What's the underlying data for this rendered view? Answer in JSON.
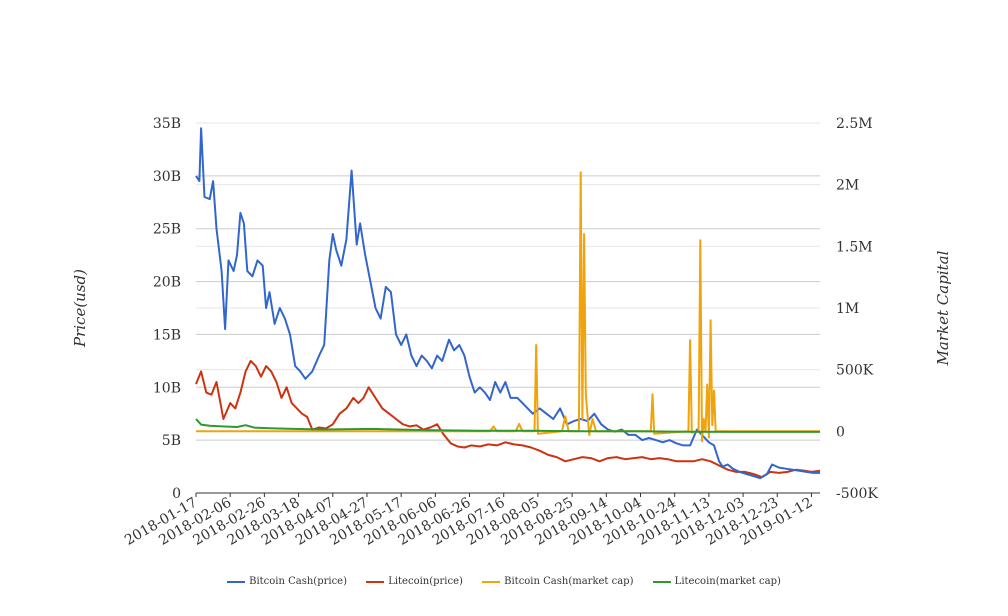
{
  "chart_data": {
    "type": "line",
    "y_left_label": "Price(usd)",
    "y_right_label": "Market Capital",
    "y_left_ticks": [
      "0",
      "5B",
      "10B",
      "15B",
      "20B",
      "25B",
      "30B",
      "35B"
    ],
    "y_left_range": [
      0,
      35000000000
    ],
    "y_right_ticks": [
      "-500K",
      "0",
      "500K",
      "1M",
      "1.5M",
      "2M",
      "2.5M"
    ],
    "y_right_range": [
      -500000,
      2500000
    ],
    "x_ticks": [
      "2018-01-17",
      "2018-02-06",
      "2018-02-26",
      "2018-03-18",
      "2018-04-07",
      "2018-04-27",
      "2018-05-17",
      "2018-06-06",
      "2018-06-26",
      "2018-07-16",
      "2018-08-05",
      "2018-08-25",
      "2018-09-14",
      "2018-10-04",
      "2018-10-24",
      "2018-11-13",
      "2018-12-03",
      "2018-12-23",
      "2019-01-12"
    ],
    "x_range": [
      "2018-01-17",
      "2019-01-17"
    ],
    "grid": true,
    "legend_position": "bottom",
    "series": [
      {
        "name": "Bitcoin Cash(price)",
        "color": "#3366cc",
        "axis": "left",
        "points": [
          [
            "2018-01-17",
            30.0
          ],
          [
            "2018-01-19",
            29.5
          ],
          [
            "2018-01-20",
            34.5
          ],
          [
            "2018-01-22",
            28.0
          ],
          [
            "2018-01-25",
            27.8
          ],
          [
            "2018-01-27",
            29.5
          ],
          [
            "2018-01-29",
            25.0
          ],
          [
            "2018-02-01",
            21.0
          ],
          [
            "2018-02-03",
            15.5
          ],
          [
            "2018-02-05",
            22.0
          ],
          [
            "2018-02-08",
            21.0
          ],
          [
            "2018-02-10",
            22.5
          ],
          [
            "2018-02-12",
            26.5
          ],
          [
            "2018-02-14",
            25.5
          ],
          [
            "2018-02-16",
            21.0
          ],
          [
            "2018-02-19",
            20.5
          ],
          [
            "2018-02-22",
            22.0
          ],
          [
            "2018-02-25",
            21.5
          ],
          [
            "2018-02-27",
            17.5
          ],
          [
            "2018-03-01",
            19.0
          ],
          [
            "2018-03-04",
            16.0
          ],
          [
            "2018-03-07",
            17.5
          ],
          [
            "2018-03-10",
            16.5
          ],
          [
            "2018-03-13",
            15.0
          ],
          [
            "2018-03-16",
            12.0
          ],
          [
            "2018-03-19",
            11.5
          ],
          [
            "2018-03-22",
            10.8
          ],
          [
            "2018-03-26",
            11.5
          ],
          [
            "2018-03-30",
            13.0
          ],
          [
            "2018-04-02",
            14.0
          ],
          [
            "2018-04-05",
            22.0
          ],
          [
            "2018-04-07",
            24.5
          ],
          [
            "2018-04-09",
            23.0
          ],
          [
            "2018-04-12",
            21.5
          ],
          [
            "2018-04-15",
            24.0
          ],
          [
            "2018-04-18",
            30.5
          ],
          [
            "2018-04-21",
            23.5
          ],
          [
            "2018-04-23",
            25.5
          ],
          [
            "2018-04-26",
            22.5
          ],
          [
            "2018-04-29",
            20.0
          ],
          [
            "2018-05-02",
            17.5
          ],
          [
            "2018-05-05",
            16.5
          ],
          [
            "2018-05-08",
            19.5
          ],
          [
            "2018-05-11",
            19.0
          ],
          [
            "2018-05-14",
            15.0
          ],
          [
            "2018-05-17",
            14.0
          ],
          [
            "2018-05-20",
            15.0
          ],
          [
            "2018-05-23",
            13.0
          ],
          [
            "2018-05-26",
            12.0
          ],
          [
            "2018-05-29",
            13.0
          ],
          [
            "2018-06-01",
            12.5
          ],
          [
            "2018-06-04",
            11.8
          ],
          [
            "2018-06-07",
            13.0
          ],
          [
            "2018-06-10",
            12.5
          ],
          [
            "2018-06-14",
            14.5
          ],
          [
            "2018-06-17",
            13.5
          ],
          [
            "2018-06-20",
            14.0
          ],
          [
            "2018-06-23",
            13.0
          ],
          [
            "2018-06-26",
            11.0
          ],
          [
            "2018-06-29",
            9.5
          ],
          [
            "2018-07-02",
            10.0
          ],
          [
            "2018-07-05",
            9.5
          ],
          [
            "2018-07-08",
            8.8
          ],
          [
            "2018-07-11",
            10.5
          ],
          [
            "2018-07-14",
            9.5
          ],
          [
            "2018-07-17",
            10.5
          ],
          [
            "2018-07-20",
            9.0
          ],
          [
            "2018-07-24",
            9.0
          ],
          [
            "2018-07-27",
            8.5
          ],
          [
            "2018-07-30",
            8.0
          ],
          [
            "2018-08-02",
            7.5
          ],
          [
            "2018-08-06",
            8.0
          ],
          [
            "2018-08-10",
            7.5
          ],
          [
            "2018-08-14",
            7.0
          ],
          [
            "2018-08-18",
            8.0
          ],
          [
            "2018-08-22",
            6.5
          ],
          [
            "2018-08-26",
            6.8
          ],
          [
            "2018-08-30",
            7.0
          ],
          [
            "2018-09-03",
            6.8
          ],
          [
            "2018-09-07",
            7.5
          ],
          [
            "2018-09-11",
            6.5
          ],
          [
            "2018-09-15",
            6.0
          ],
          [
            "2018-09-19",
            5.8
          ],
          [
            "2018-09-23",
            6.0
          ],
          [
            "2018-09-27",
            5.5
          ],
          [
            "2018-10-01",
            5.5
          ],
          [
            "2018-10-05",
            5.0
          ],
          [
            "2018-10-09",
            5.2
          ],
          [
            "2018-10-13",
            5.0
          ],
          [
            "2018-10-17",
            4.8
          ],
          [
            "2018-10-21",
            5.0
          ],
          [
            "2018-10-25",
            4.7
          ],
          [
            "2018-10-29",
            4.5
          ],
          [
            "2018-11-02",
            4.5
          ],
          [
            "2018-11-06",
            6.0
          ],
          [
            "2018-11-09",
            5.5
          ],
          [
            "2018-11-13",
            4.8
          ],
          [
            "2018-11-16",
            4.5
          ],
          [
            "2018-11-19",
            3.0
          ],
          [
            "2018-11-21",
            2.5
          ],
          [
            "2018-11-24",
            2.7
          ],
          [
            "2018-11-27",
            2.3
          ],
          [
            "2018-12-01",
            2.0
          ],
          [
            "2018-12-05",
            1.8
          ],
          [
            "2018-12-09",
            1.6
          ],
          [
            "2018-12-13",
            1.4
          ],
          [
            "2018-12-17",
            1.8
          ],
          [
            "2018-12-20",
            2.7
          ],
          [
            "2018-12-24",
            2.4
          ],
          [
            "2018-12-28",
            2.3
          ],
          [
            "2019-01-01",
            2.2
          ],
          [
            "2019-01-05",
            2.1
          ],
          [
            "2019-01-09",
            2.0
          ],
          [
            "2019-01-13",
            1.9
          ],
          [
            "2019-01-17",
            1.9
          ]
        ]
      },
      {
        "name": "Litecoin(price)",
        "color": "#cc3311",
        "axis": "left",
        "points": [
          [
            "2018-01-17",
            10.3
          ],
          [
            "2018-01-20",
            11.5
          ],
          [
            "2018-01-23",
            9.5
          ],
          [
            "2018-01-26",
            9.3
          ],
          [
            "2018-01-29",
            10.5
          ],
          [
            "2018-02-02",
            7.0
          ],
          [
            "2018-02-06",
            8.5
          ],
          [
            "2018-02-09",
            8.0
          ],
          [
            "2018-02-12",
            9.5
          ],
          [
            "2018-02-15",
            11.5
          ],
          [
            "2018-02-18",
            12.5
          ],
          [
            "2018-02-21",
            12.0
          ],
          [
            "2018-02-24",
            11.0
          ],
          [
            "2018-02-27",
            12.0
          ],
          [
            "2018-03-02",
            11.5
          ],
          [
            "2018-03-05",
            10.5
          ],
          [
            "2018-03-08",
            9.0
          ],
          [
            "2018-03-11",
            10.0
          ],
          [
            "2018-03-14",
            8.5
          ],
          [
            "2018-03-17",
            8.0
          ],
          [
            "2018-03-20",
            7.5
          ],
          [
            "2018-03-23",
            7.2
          ],
          [
            "2018-03-26",
            6.0
          ],
          [
            "2018-03-30",
            6.2
          ],
          [
            "2018-04-03",
            6.1
          ],
          [
            "2018-04-07",
            6.5
          ],
          [
            "2018-04-11",
            7.5
          ],
          [
            "2018-04-15",
            8.0
          ],
          [
            "2018-04-19",
            9.0
          ],
          [
            "2018-04-22",
            8.5
          ],
          [
            "2018-04-25",
            9.0
          ],
          [
            "2018-04-28",
            10.0
          ],
          [
            "2018-05-02",
            9.0
          ],
          [
            "2018-05-06",
            8.0
          ],
          [
            "2018-05-10",
            7.5
          ],
          [
            "2018-05-14",
            7.0
          ],
          [
            "2018-05-18",
            6.5
          ],
          [
            "2018-05-22",
            6.3
          ],
          [
            "2018-05-26",
            6.4
          ],
          [
            "2018-05-30",
            6.0
          ],
          [
            "2018-06-03",
            6.2
          ],
          [
            "2018-06-07",
            6.5
          ],
          [
            "2018-06-11",
            5.5
          ],
          [
            "2018-06-15",
            4.7
          ],
          [
            "2018-06-19",
            4.4
          ],
          [
            "2018-06-23",
            4.3
          ],
          [
            "2018-06-27",
            4.5
          ],
          [
            "2018-07-02",
            4.4
          ],
          [
            "2018-07-07",
            4.6
          ],
          [
            "2018-07-12",
            4.5
          ],
          [
            "2018-07-17",
            4.8
          ],
          [
            "2018-07-22",
            4.6
          ],
          [
            "2018-07-27",
            4.5
          ],
          [
            "2018-08-01",
            4.3
          ],
          [
            "2018-08-06",
            4.0
          ],
          [
            "2018-08-11",
            3.6
          ],
          [
            "2018-08-16",
            3.4
          ],
          [
            "2018-08-21",
            3.0
          ],
          [
            "2018-08-26",
            3.2
          ],
          [
            "2018-08-31",
            3.4
          ],
          [
            "2018-09-05",
            3.3
          ],
          [
            "2018-09-10",
            3.0
          ],
          [
            "2018-09-15",
            3.3
          ],
          [
            "2018-09-20",
            3.4
          ],
          [
            "2018-09-25",
            3.2
          ],
          [
            "2018-09-30",
            3.3
          ],
          [
            "2018-10-05",
            3.4
          ],
          [
            "2018-10-10",
            3.2
          ],
          [
            "2018-10-15",
            3.3
          ],
          [
            "2018-10-20",
            3.2
          ],
          [
            "2018-10-25",
            3.0
          ],
          [
            "2018-10-30",
            3.0
          ],
          [
            "2018-11-04",
            3.0
          ],
          [
            "2018-11-09",
            3.2
          ],
          [
            "2018-11-14",
            3.0
          ],
          [
            "2018-11-19",
            2.6
          ],
          [
            "2018-11-24",
            2.2
          ],
          [
            "2018-11-29",
            2.0
          ],
          [
            "2018-12-04",
            2.0
          ],
          [
            "2018-12-09",
            1.8
          ],
          [
            "2018-12-14",
            1.5
          ],
          [
            "2018-12-19",
            2.0
          ],
          [
            "2018-12-24",
            1.9
          ],
          [
            "2018-12-29",
            2.0
          ],
          [
            "2019-01-03",
            2.2
          ],
          [
            "2019-01-08",
            2.1
          ],
          [
            "2019-01-12",
            2.0
          ],
          [
            "2019-01-17",
            2.1
          ]
        ]
      },
      {
        "name": "Bitcoin Cash(market cap)",
        "color": "#f0a30a",
        "axis": "right",
        "points": [
          [
            "2018-01-17",
            0
          ],
          [
            "2018-07-08",
            0
          ],
          [
            "2018-07-10",
            40000
          ],
          [
            "2018-07-12",
            0
          ],
          [
            "2018-07-23",
            0
          ],
          [
            "2018-07-25",
            60000
          ],
          [
            "2018-07-27",
            0
          ],
          [
            "2018-08-03",
            0
          ],
          [
            "2018-08-04",
            700000
          ],
          [
            "2018-08-05",
            -20000
          ],
          [
            "2018-08-19",
            0
          ],
          [
            "2018-08-21",
            120000
          ],
          [
            "2018-08-23",
            0
          ],
          [
            "2018-08-29",
            0
          ],
          [
            "2018-08-30",
            2100000
          ],
          [
            "2018-08-31",
            100000
          ],
          [
            "2018-09-01",
            1600000
          ],
          [
            "2018-09-02",
            300000
          ],
          [
            "2018-09-04",
            -30000
          ],
          [
            "2018-09-06",
            100000
          ],
          [
            "2018-09-08",
            0
          ],
          [
            "2018-10-10",
            0
          ],
          [
            "2018-10-11",
            300000
          ],
          [
            "2018-10-12",
            -20000
          ],
          [
            "2018-11-01",
            0
          ],
          [
            "2018-11-02",
            740000
          ],
          [
            "2018-11-03",
            -10000
          ],
          [
            "2018-11-07",
            0
          ],
          [
            "2018-11-08",
            1550000
          ],
          [
            "2018-11-09",
            -80000
          ],
          [
            "2018-11-10",
            100000
          ],
          [
            "2018-11-11",
            0
          ],
          [
            "2018-11-12",
            380000
          ],
          [
            "2018-11-13",
            -50000
          ],
          [
            "2018-11-14",
            900000
          ],
          [
            "2018-11-15",
            50000
          ],
          [
            "2018-11-16",
            330000
          ],
          [
            "2018-11-17",
            0
          ],
          [
            "2019-01-17",
            0
          ]
        ]
      },
      {
        "name": "Litecoin(market cap)",
        "color": "#2e9a2e",
        "axis": "right",
        "points": [
          [
            "2018-01-17",
            100000
          ],
          [
            "2018-01-20",
            55000
          ],
          [
            "2018-01-25",
            45000
          ],
          [
            "2018-02-01",
            40000
          ],
          [
            "2018-02-10",
            35000
          ],
          [
            "2018-02-15",
            50000
          ],
          [
            "2018-02-20",
            30000
          ],
          [
            "2018-03-01",
            25000
          ],
          [
            "2018-03-15",
            20000
          ],
          [
            "2018-04-01",
            15000
          ],
          [
            "2018-05-01",
            20000
          ],
          [
            "2018-06-01",
            10000
          ],
          [
            "2018-07-01",
            5000
          ],
          [
            "2018-08-01",
            5000
          ],
          [
            "2018-09-01",
            0
          ],
          [
            "2018-10-01",
            0
          ],
          [
            "2018-11-01",
            -3000
          ],
          [
            "2018-12-01",
            -5000
          ],
          [
            "2019-01-17",
            -5000
          ]
        ]
      }
    ]
  }
}
